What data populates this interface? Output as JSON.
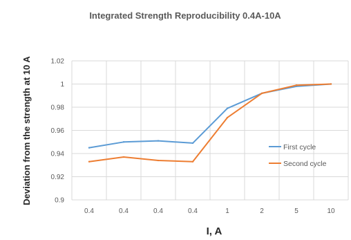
{
  "chart_data": {
    "type": "line",
    "title": "Integrated Strength Reproducibility 0.4A-10A",
    "xlabel": "I, A",
    "ylabel": "Deviation from the strength at 10 A",
    "categories": [
      "0.4",
      "0.4",
      "0.4",
      "0.4",
      "1",
      "2",
      "5",
      "10"
    ],
    "ylim": [
      0.9,
      1.02
    ],
    "yticks": [
      "0.9",
      "0.92",
      "0.94",
      "0.96",
      "0.98",
      "1",
      "1.02"
    ],
    "grid": "vertical and horizontal",
    "legend_position": "right",
    "series": [
      {
        "name": "First cycle",
        "color": "#5B9BD5",
        "values": [
          0.945,
          0.95,
          0.951,
          0.949,
          0.979,
          0.992,
          0.998,
          1.0
        ]
      },
      {
        "name": "Second cycle",
        "color": "#ED7D31",
        "values": [
          0.933,
          0.937,
          0.934,
          0.933,
          0.971,
          0.992,
          0.999,
          1.0
        ]
      }
    ]
  }
}
